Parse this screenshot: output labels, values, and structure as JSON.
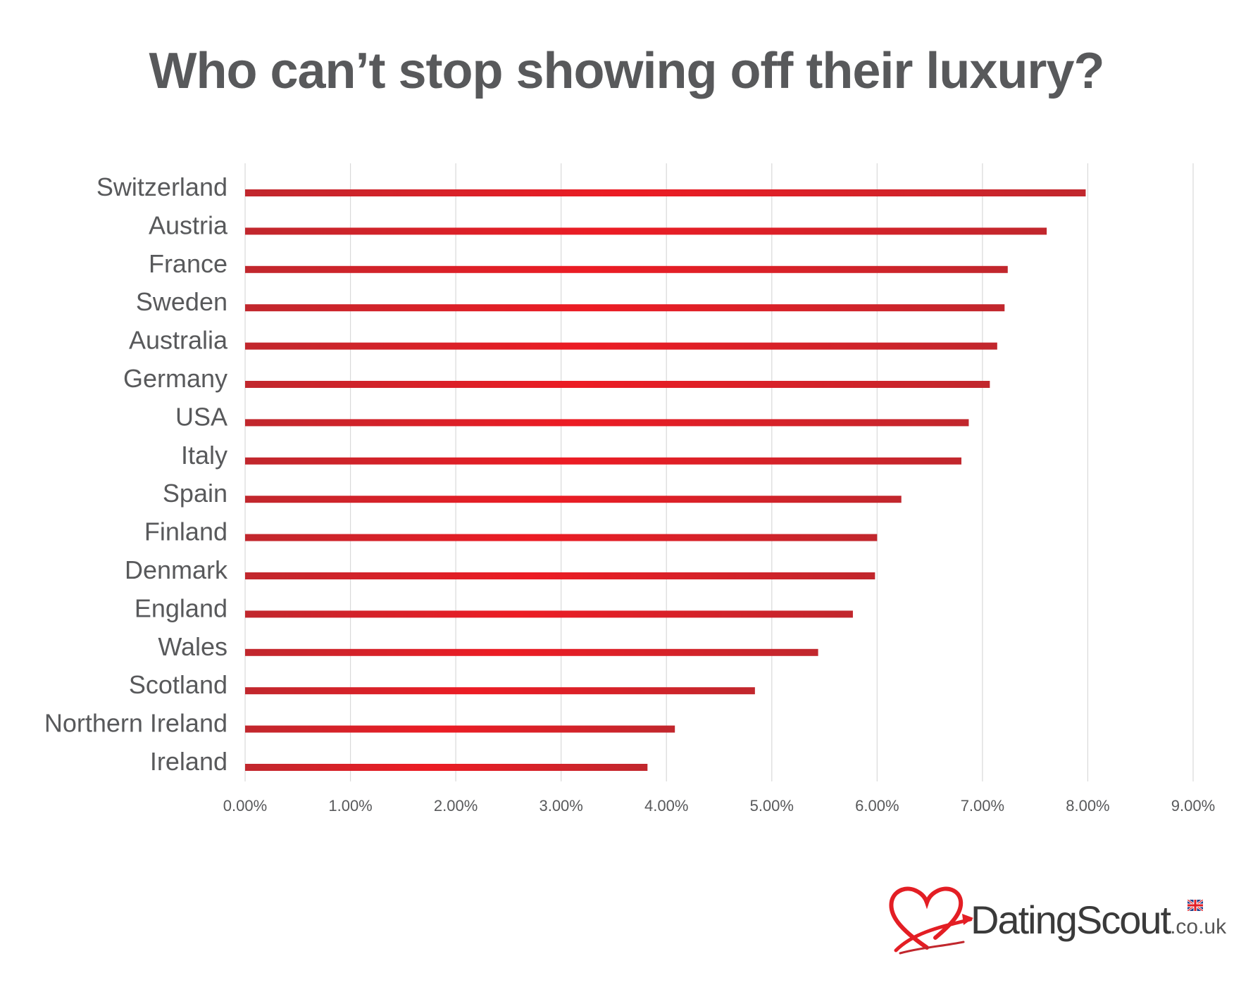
{
  "chart_data": {
    "type": "bar",
    "orientation": "horizontal",
    "title": "Who can’t stop showing off their luxury?",
    "categories": [
      "Switzerland",
      "Austria",
      "France",
      "Sweden",
      "Australia",
      "Germany",
      "USA",
      "Italy",
      "Spain",
      "Finland",
      "Denmark",
      "England",
      "Wales",
      "Scotland",
      "Northern Ireland",
      "Ireland"
    ],
    "values": [
      7.98,
      7.61,
      7.24,
      7.21,
      7.14,
      7.07,
      6.87,
      6.8,
      6.23,
      6.0,
      5.98,
      5.77,
      5.44,
      4.84,
      4.08,
      3.82
    ],
    "xlim": [
      0,
      9
    ],
    "xticks": [
      "0.00%",
      "1.00%",
      "2.00%",
      "3.00%",
      "4.00%",
      "5.00%",
      "6.00%",
      "7.00%",
      "8.00%",
      "9.00%"
    ],
    "grid": "vertical",
    "bar_color_edge": "#c1272d",
    "bar_color_center": "#ec1c24",
    "legend": "none"
  },
  "brand": {
    "name": "DatingScout",
    "domain": ".co.uk",
    "heart_icon": "heart-arrow-icon",
    "flag_icon": "uk-flag-icon",
    "color": "#e31e24"
  }
}
